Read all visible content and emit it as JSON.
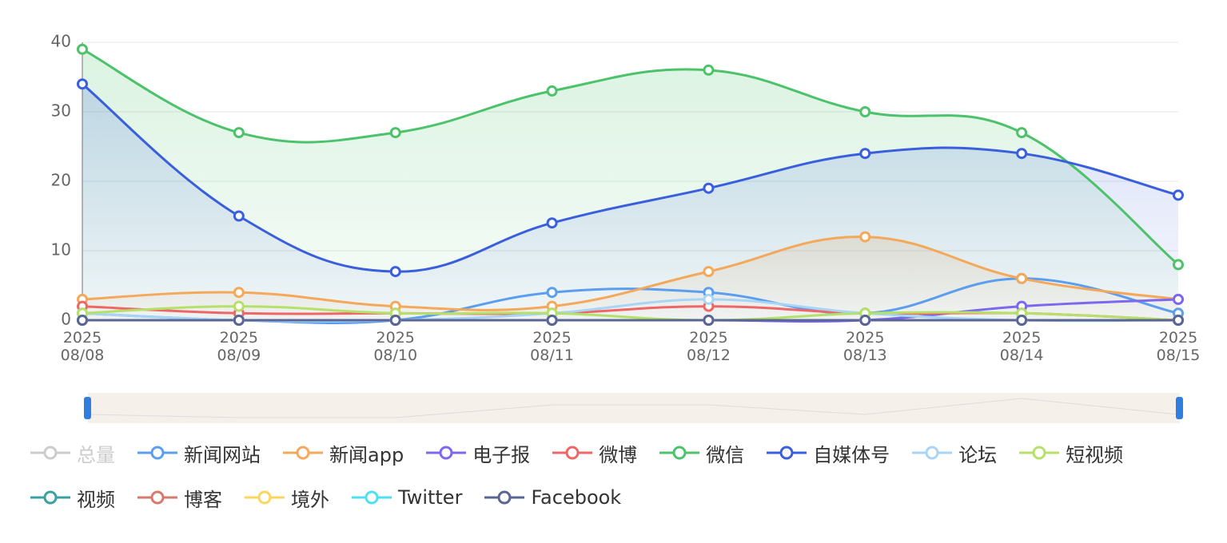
{
  "chart_data": {
    "type": "line",
    "categories": [
      "2025\n08/08",
      "2025\n08/09",
      "2025\n08/10",
      "2025\n08/11",
      "2025\n08/12",
      "2025\n08/13",
      "2025\n08/14",
      "2025\n08/15"
    ],
    "ylim": [
      0,
      40
    ],
    "yticks": [
      0,
      10,
      20,
      30,
      40
    ],
    "grid": true,
    "smooth": true,
    "series": [
      {
        "name": "总量",
        "color": "#cccccc",
        "visible": false
      },
      {
        "name": "新闻网站",
        "color": "#5b9ef0",
        "values": [
          1,
          0,
          0,
          4,
          4,
          1,
          6,
          1
        ]
      },
      {
        "name": "新闻app",
        "color": "#f5a85a",
        "area": true,
        "values": [
          3,
          4,
          2,
          2,
          7,
          12,
          6,
          3
        ]
      },
      {
        "name": "电子报",
        "color": "#7b68ee",
        "values": [
          0,
          0,
          0,
          0,
          0,
          0,
          2,
          3
        ]
      },
      {
        "name": "微博",
        "color": "#ee6666",
        "values": [
          2,
          1,
          1,
          1,
          2,
          1,
          1,
          0
        ]
      },
      {
        "name": "微信",
        "color": "#4cc26b",
        "area": true,
        "values": [
          39,
          27,
          27,
          33,
          36,
          30,
          27,
          8
        ]
      },
      {
        "name": "自媒体号",
        "color": "#3a5fdc",
        "area": true,
        "values": [
          34,
          15,
          7,
          14,
          19,
          24,
          24,
          18
        ]
      },
      {
        "name": "论坛",
        "color": "#a8d4f5",
        "values": [
          1,
          0,
          0,
          1,
          3,
          1,
          0,
          0
        ]
      },
      {
        "name": "短视频",
        "color": "#b5e06a",
        "values": [
          1,
          2,
          1,
          1,
          0,
          1,
          1,
          0
        ]
      },
      {
        "name": "视频",
        "color": "#3ba0a0",
        "values": [
          0,
          0,
          0,
          0,
          0,
          0,
          0,
          0
        ]
      },
      {
        "name": "博客",
        "color": "#d67a6e",
        "values": [
          0,
          0,
          0,
          0,
          0,
          0,
          0,
          0
        ]
      },
      {
        "name": "境外",
        "color": "#fcd55d",
        "values": [
          0,
          0,
          0,
          0,
          0,
          0,
          0,
          0
        ]
      },
      {
        "name": "Twitter",
        "color": "#4de0f0",
        "values": [
          0,
          0,
          0,
          0,
          0,
          0,
          0,
          0
        ]
      },
      {
        "name": "Facebook",
        "color": "#5a6595",
        "values": [
          0,
          0,
          0,
          0,
          0,
          0,
          0,
          0
        ]
      }
    ]
  }
}
